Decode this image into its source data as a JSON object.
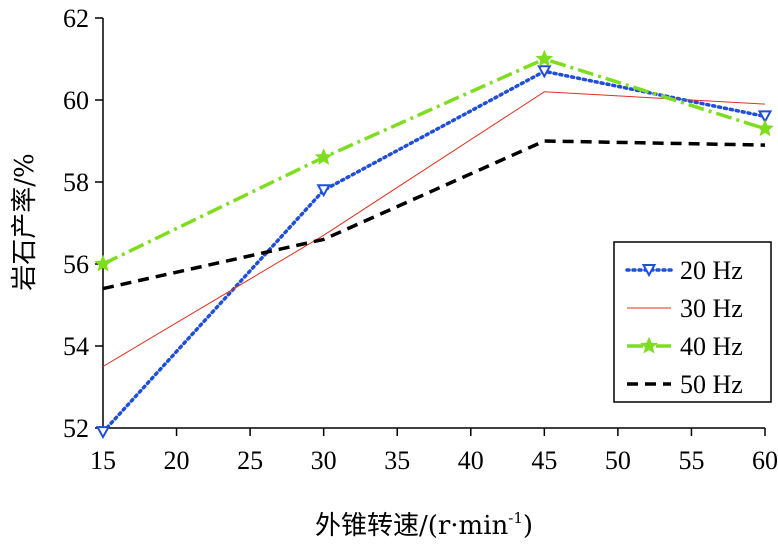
{
  "chart_data": {
    "type": "line",
    "title": "",
    "xlabel": "外锥转速/(r·min",
    "xlabel_sup": "-1",
    "xlabel_close": ")",
    "ylabel": "岩石产率/%",
    "xlim": [
      15,
      60
    ],
    "ylim": [
      52,
      62
    ],
    "xticks": [
      15,
      20,
      25,
      30,
      35,
      40,
      45,
      50,
      55,
      60
    ],
    "yticks": [
      52,
      54,
      56,
      58,
      60,
      62
    ],
    "xtick_labels": [
      "15",
      "20",
      "25",
      "30",
      "35",
      "40",
      "45",
      "50",
      "55",
      "60"
    ],
    "ytick_labels": [
      "52",
      "54",
      "56",
      "58",
      "60",
      "62"
    ],
    "grid": false,
    "legend_position": "bottom-right",
    "x": [
      15,
      30,
      45,
      60
    ],
    "series": [
      {
        "name": "20 Hz",
        "values": [
          51.9,
          57.8,
          60.7,
          59.6
        ],
        "color": "#1f4fd8",
        "style": "dotted",
        "marker": "triangle-down"
      },
      {
        "name": "30 Hz",
        "values": [
          53.5,
          56.7,
          60.2,
          59.9
        ],
        "color": "#e03020",
        "style": "solid",
        "marker": "none"
      },
      {
        "name": "40 Hz",
        "values": [
          56.0,
          58.6,
          61.0,
          59.3
        ],
        "color": "#7fdd1f",
        "style": "dash-dot",
        "marker": "star"
      },
      {
        "name": "50 Hz",
        "values": [
          55.4,
          56.6,
          59.0,
          58.9
        ],
        "color": "#000000",
        "style": "dashed",
        "marker": "none"
      }
    ]
  }
}
